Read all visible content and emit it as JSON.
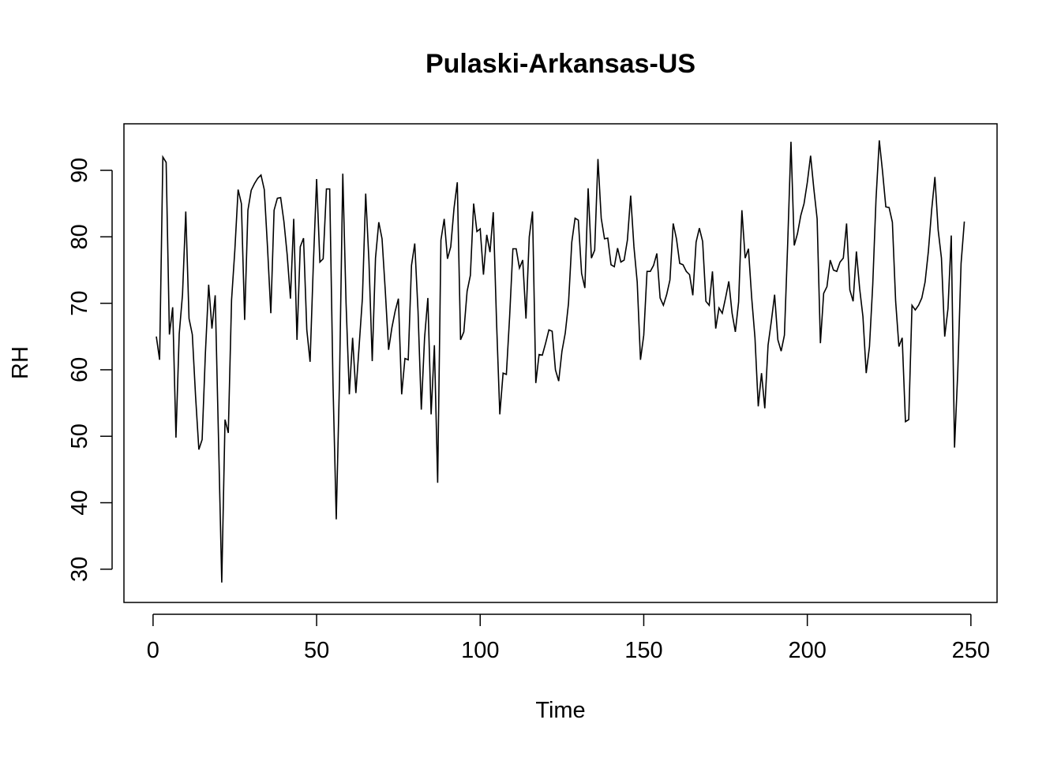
{
  "chart_data": {
    "type": "line",
    "title": "Pulaski-Arkansas-US",
    "xlabel": "Time",
    "ylabel": "RH",
    "xlim": [
      -8.9,
      258
    ],
    "ylim": [
      25,
      97
    ],
    "xticks": [
      0,
      50,
      100,
      150,
      200,
      250
    ],
    "yticks": [
      30,
      40,
      50,
      60,
      70,
      80,
      90
    ],
    "grid": false,
    "series": [
      {
        "color": "#000000",
        "x": [
          1,
          2,
          3,
          4,
          5,
          6,
          7,
          8,
          9,
          10,
          11,
          12,
          13,
          14,
          15,
          16,
          17,
          18,
          19,
          20,
          21,
          22,
          23,
          24,
          25,
          26,
          27,
          28,
          29,
          30,
          31,
          32,
          33,
          34,
          35,
          36,
          37,
          38,
          39,
          40,
          41,
          42,
          43,
          44,
          45,
          46,
          47,
          48,
          49,
          50,
          51,
          52,
          53,
          54,
          55,
          56,
          57,
          58,
          59,
          60,
          61,
          62,
          63,
          64,
          65,
          66,
          67,
          68,
          69,
          70,
          71,
          72,
          73,
          74,
          75,
          76,
          77,
          78,
          79,
          80,
          81,
          82,
          83,
          84,
          85,
          86,
          87,
          88,
          89,
          90,
          91,
          92,
          93,
          94,
          95,
          96,
          97,
          98,
          99,
          100,
          101,
          102,
          103,
          104,
          105,
          106,
          107,
          108,
          109,
          110,
          111,
          112,
          113,
          114,
          115,
          116,
          117,
          118,
          119,
          120,
          121,
          122,
          123,
          124,
          125,
          126,
          127,
          128,
          129,
          130,
          131,
          132,
          133,
          134,
          135,
          136,
          137,
          138,
          139,
          140,
          141,
          142,
          143,
          144,
          145,
          146,
          147,
          148,
          149,
          150,
          151,
          152,
          153,
          154,
          155,
          156,
          157,
          158,
          159,
          160,
          161,
          162,
          163,
          164,
          165,
          166,
          167,
          168,
          169,
          170,
          171,
          172,
          173,
          174,
          175,
          176,
          177,
          178,
          179,
          180,
          181,
          182,
          183,
          184,
          185,
          186,
          187,
          188,
          189,
          190,
          191,
          192,
          193,
          194,
          195,
          196,
          197,
          198,
          199,
          200,
          201,
          202,
          203,
          204,
          205,
          206,
          207,
          208,
          209,
          210,
          211,
          212,
          213,
          214,
          215,
          216,
          217,
          218,
          219,
          220,
          221,
          222,
          223,
          224,
          225,
          226,
          227,
          228,
          229,
          230,
          231,
          232,
          233,
          234,
          235,
          236,
          237,
          238,
          239,
          240,
          241,
          242,
          243,
          244,
          245,
          246,
          247,
          248
        ],
        "values": [
          65.0,
          61.5,
          92.0,
          91.2,
          65.3,
          69.4,
          49.8,
          65.4,
          71.3,
          83.8,
          67.7,
          65.3,
          56.0,
          48.0,
          49.5,
          62.5,
          72.8,
          66.2,
          71.2,
          49.8,
          28.0,
          52.5,
          50.5,
          70.5,
          78.0,
          87.1,
          85.0,
          67.5,
          84.0,
          87.0,
          88.0,
          88.8,
          89.3,
          87.1,
          78.3,
          68.5,
          84.0,
          85.8,
          85.9,
          82.3,
          77.3,
          70.7,
          82.7,
          64.5,
          78.5,
          79.8,
          66.0,
          61.2,
          75.9,
          88.7,
          76.2,
          76.7,
          87.2,
          87.2,
          58.0,
          37.5,
          58.5,
          89.5,
          70.0,
          56.3,
          64.8,
          56.5,
          63.6,
          70.8,
          86.5,
          76.3,
          61.3,
          76.8,
          82.2,
          79.7,
          71.8,
          63.0,
          66.3,
          68.8,
          70.7,
          56.3,
          61.7,
          61.5,
          75.7,
          79.0,
          68.8,
          54.0,
          64.8,
          70.8,
          53.3,
          63.7,
          43.0,
          79.5,
          82.7,
          76.7,
          78.5,
          84.3,
          88.2,
          64.5,
          65.7,
          71.8,
          74.2,
          85.0,
          80.8,
          81.2,
          74.3,
          80.3,
          77.7,
          83.7,
          67.2,
          53.3,
          59.5,
          59.3,
          68.0,
          78.2,
          78.2,
          75.3,
          76.5,
          67.7,
          80.0,
          83.8,
          58.0,
          62.3,
          62.2,
          64.0,
          66.0,
          65.8,
          60.0,
          58.3,
          62.8,
          65.5,
          70.0,
          79.2,
          82.8,
          82.5,
          74.5,
          72.3,
          87.3,
          76.8,
          78.0,
          91.7,
          82.8,
          79.7,
          79.8,
          75.8,
          75.5,
          78.3,
          76.2,
          76.5,
          79.5,
          86.2,
          78.5,
          73.2,
          61.5,
          65.2,
          74.8,
          74.8,
          75.7,
          77.5,
          70.8,
          69.7,
          71.3,
          73.5,
          82.0,
          79.7,
          76.0,
          75.8,
          74.8,
          74.3,
          71.2,
          79.2,
          81.3,
          79.3,
          70.3,
          69.7,
          74.8,
          66.2,
          69.3,
          68.5,
          70.8,
          73.3,
          68.5,
          65.7,
          70.2,
          84.0,
          76.8,
          78.2,
          70.8,
          64.8,
          54.5,
          59.5,
          54.2,
          63.7,
          67.3,
          71.3,
          64.5,
          62.8,
          65.2,
          79.0,
          94.3,
          78.7,
          80.5,
          83.2,
          85.0,
          88.2,
          92.2,
          87.2,
          82.7,
          64.0,
          71.5,
          72.5,
          76.5,
          75.0,
          74.8,
          76.2,
          76.8,
          82.0,
          72.0,
          70.3,
          77.8,
          72.2,
          68.0,
          59.5,
          63.5,
          72.8,
          85.7,
          94.5,
          89.8,
          84.5,
          84.4,
          82.2,
          70.3,
          63.5,
          64.8,
          52.2,
          52.5,
          69.7,
          69.0,
          69.7,
          70.8,
          73.2,
          77.8,
          84.0,
          89.0,
          81.0,
          76.8,
          65.0,
          69.2,
          80.2,
          48.3,
          59.8,
          76.0,
          82.3
        ]
      }
    ]
  }
}
